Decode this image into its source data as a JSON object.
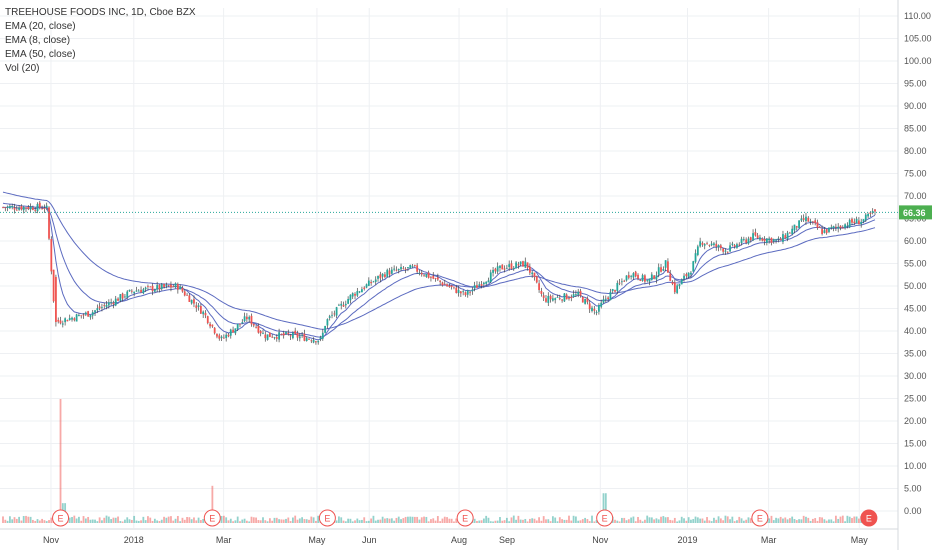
{
  "legend": {
    "title": "TREEHOUSE FOODS INC, 1D, Cboe BZX",
    "ema20": "EMA (20, close)",
    "ema8": "EMA (8, close)",
    "ema50": "EMA (50, close)",
    "vol": "Vol (20)"
  },
  "colors": {
    "up": "#26a69a",
    "down": "#ef5350",
    "ema": "#5c6bc0",
    "price_line": "#26a69a",
    "last_price_bg": "#4caf50",
    "grid": "#eef0f3",
    "earnings": "#ef5350"
  },
  "chart_data": {
    "type": "candlestick",
    "title": "TREEHOUSE FOODS INC, 1D, Cboe BZX",
    "y_axis": {
      "min": 0,
      "max": 110,
      "tick_labels": [
        "110.00",
        "105.00",
        "100.00",
        "95.00",
        "90.00",
        "85.00",
        "80.00",
        "75.00",
        "70.00",
        "65.00",
        "60.00",
        "55.00",
        "50.00",
        "45.00",
        "40.00",
        "35.00",
        "30.00",
        "25.00",
        "20.00",
        "15.00",
        "10.00",
        "5.00",
        "0.00"
      ]
    },
    "last_price": "66.36",
    "x_axis": {
      "labels": [
        "Nov",
        "2018",
        "Mar",
        "May",
        "Jun",
        "Aug",
        "Sep",
        "Nov",
        "2019",
        "Mar",
        "May"
      ],
      "label_positions_t": [
        0.055,
        0.15,
        0.253,
        0.36,
        0.42,
        0.523,
        0.578,
        0.685,
        0.785,
        0.878,
        0.982
      ]
    },
    "price_keypoints": [
      [
        0.0,
        67.5
      ],
      [
        0.05,
        67.5
      ],
      [
        0.06,
        42
      ],
      [
        0.1,
        44
      ],
      [
        0.15,
        49
      ],
      [
        0.2,
        50
      ],
      [
        0.23,
        44
      ],
      [
        0.25,
        38
      ],
      [
        0.28,
        43
      ],
      [
        0.3,
        39
      ],
      [
        0.33,
        39
      ],
      [
        0.365,
        38
      ],
      [
        0.37,
        42
      ],
      [
        0.4,
        48
      ],
      [
        0.44,
        53
      ],
      [
        0.47,
        54
      ],
      [
        0.5,
        51
      ],
      [
        0.53,
        48
      ],
      [
        0.57,
        54
      ],
      [
        0.6,
        55
      ],
      [
        0.62,
        47
      ],
      [
        0.66,
        48
      ],
      [
        0.68,
        44
      ],
      [
        0.69,
        47
      ],
      [
        0.72,
        53
      ],
      [
        0.74,
        51
      ],
      [
        0.76,
        55
      ],
      [
        0.77,
        49
      ],
      [
        0.79,
        54
      ],
      [
        0.8,
        60
      ],
      [
        0.83,
        58
      ],
      [
        0.86,
        61
      ],
      [
        0.89,
        60
      ],
      [
        0.92,
        65
      ],
      [
        0.94,
        62
      ],
      [
        0.97,
        64
      ],
      [
        0.985,
        64.5
      ],
      [
        1.0,
        66.4
      ]
    ],
    "earnings_t": [
      0.066,
      0.24,
      0.372,
      0.53,
      0.69,
      0.868,
      0.993
    ],
    "volume_max": 25,
    "volume_spikes": [
      [
        0.066,
        25
      ],
      [
        0.07,
        4
      ],
      [
        0.24,
        7.5
      ],
      [
        0.372,
        2
      ],
      [
        0.69,
        6
      ],
      [
        0.868,
        1.5
      ]
    ]
  }
}
